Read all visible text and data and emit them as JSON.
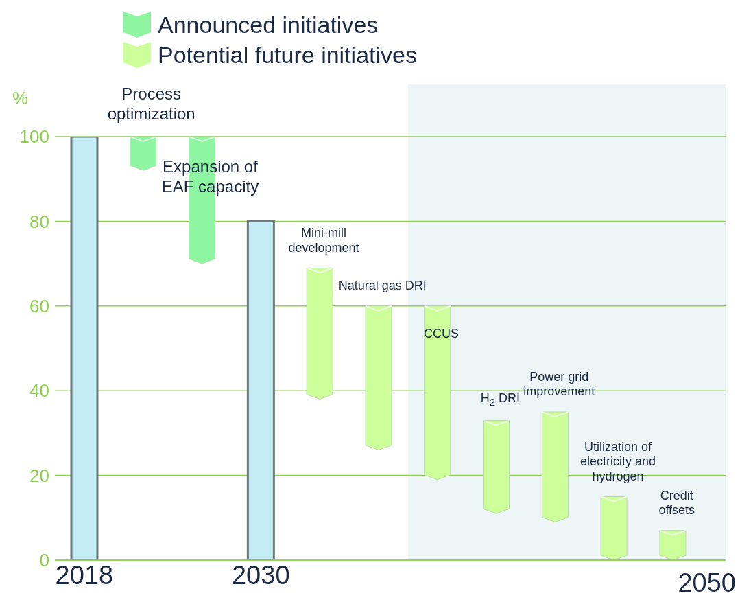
{
  "chart_data": {
    "type": "bar",
    "categories": [
      "2018",
      null,
      null,
      "2030",
      null,
      null,
      null,
      null,
      null,
      null,
      null
    ],
    "series": [
      {
        "color": "#c4ecf4",
        "values": [
          100,
          null,
          null,
          80,
          null,
          null,
          null,
          null,
          null,
          null,
          null
        ]
      },
      {
        "name": "Announced initiatives",
        "color": "#8ef5a0",
        "values": [
          null,
          8,
          30,
          null,
          null,
          null,
          null,
          null,
          null,
          null,
          null
        ],
        "base": [
          null,
          92,
          70,
          null,
          null,
          null,
          null,
          null,
          null,
          null,
          null
        ]
      },
      {
        "name": "Potential future initiatives",
        "color": "#ccff99",
        "values": [
          null,
          null,
          null,
          null,
          31,
          34,
          41,
          22,
          26,
          15,
          7
        ],
        "base": [
          null,
          null,
          null,
          null,
          38,
          26,
          19,
          11,
          9,
          0,
          0
        ]
      }
    ],
    "ylabel": "%",
    "ylim": [
      0,
      100
    ],
    "yticks": [
      0,
      20,
      40,
      60,
      80,
      100
    ],
    "grid": "y",
    "legend": "top",
    "annotations": [
      {
        "text": "Process optimization",
        "y": 100
      },
      {
        "text": "Expansion of EAF capacity",
        "y": 100
      },
      {
        "text": "Mini-mill development",
        "y": 69
      },
      {
        "text": "Natural gas DRI",
        "y": 60
      },
      {
        "text": "CCUS",
        "y": 60
      },
      {
        "text": "H$_{2}$ DRI",
        "y": 33
      },
      {
        "text": "Power grid improvement",
        "y": 35
      },
      {
        "text": "Utilization of electricity and hydrogen",
        "y": 15
      },
      {
        "text": "Credit offsets",
        "y": 7
      },
      "2050"
    ]
  }
}
